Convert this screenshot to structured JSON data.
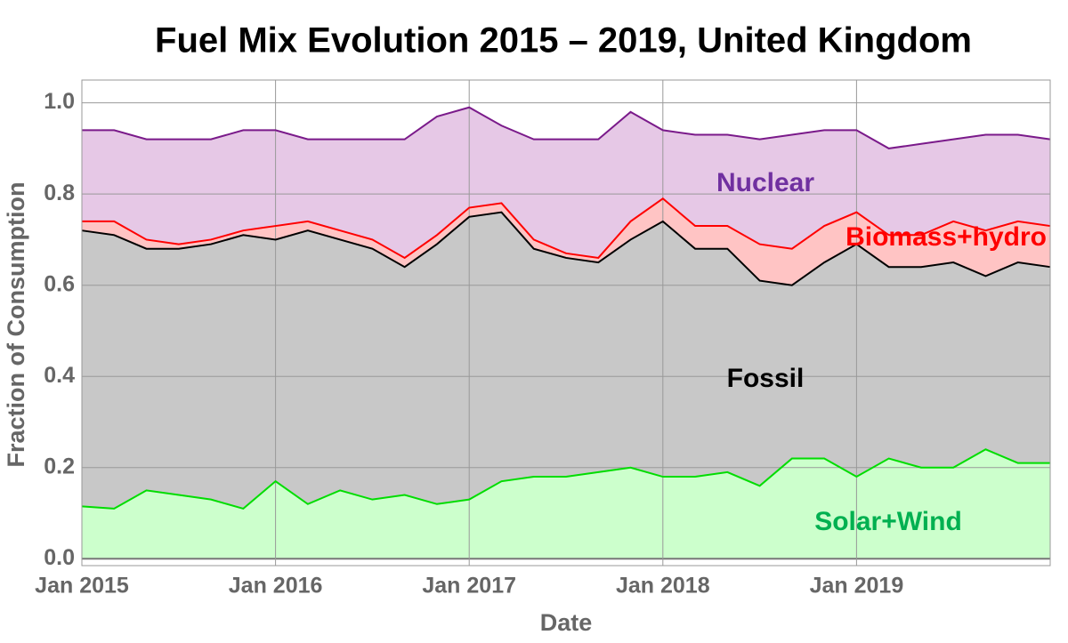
{
  "chart_data": {
    "type": "stacked-area",
    "title": "Fuel Mix Evolution 2015 – 2019, United Kingdom",
    "x_label": "Date",
    "y_label": "Fraction of Consumption",
    "x": [
      "2015-01",
      "2015-03",
      "2015-05",
      "2015-07",
      "2015-09",
      "2015-11",
      "2016-01",
      "2016-03",
      "2016-05",
      "2016-07",
      "2016-09",
      "2016-11",
      "2017-01",
      "2017-03",
      "2017-05",
      "2017-07",
      "2017-09",
      "2017-11",
      "2018-01",
      "2018-03",
      "2018-05",
      "2018-07",
      "2018-09",
      "2018-11",
      "2019-01",
      "2019-03",
      "2019-05",
      "2019-07",
      "2019-09",
      "2019-11",
      "2020-01"
    ],
    "xlim": [
      "2015-01",
      "2020-01"
    ],
    "xticks": [
      {
        "value": "2015-01",
        "label": "Jan 2015"
      },
      {
        "value": "2016-01",
        "label": "Jan 2016"
      },
      {
        "value": "2017-01",
        "label": "Jan 2017"
      },
      {
        "value": "2018-01",
        "label": "Jan 2018"
      },
      {
        "value": "2019-01",
        "label": "Jan 2019"
      }
    ],
    "ylim": [
      -0.015,
      1.05
    ],
    "yticks": [
      {
        "value": 0,
        "label": "0.0"
      },
      0.2,
      0.4,
      0.6,
      0.8,
      {
        "value": 1,
        "label": "1.0"
      }
    ],
    "grid": true,
    "series": [
      {
        "name": "Solar+Wind",
        "color": "#00dd00",
        "fill": "#ccffcc",
        "label_color": "#00b050",
        "values": [
          0.115,
          0.11,
          0.15,
          0.14,
          0.13,
          0.11,
          0.17,
          0.12,
          0.15,
          0.13,
          0.14,
          0.12,
          0.13,
          0.17,
          0.18,
          0.18,
          0.19,
          0.2,
          0.18,
          0.18,
          0.19,
          0.16,
          0.22,
          0.22,
          0.18,
          0.22,
          0.2,
          0.2,
          0.24,
          0.21,
          0.21
        ]
      },
      {
        "name": "Fossil",
        "color": "#000000",
        "fill": "#c8c8c8",
        "label_color": "#000000",
        "values": [
          0.605,
          0.6,
          0.53,
          0.54,
          0.56,
          0.6,
          0.53,
          0.6,
          0.55,
          0.55,
          0.5,
          0.57,
          0.62,
          0.59,
          0.5,
          0.48,
          0.46,
          0.5,
          0.56,
          0.5,
          0.49,
          0.45,
          0.38,
          0.43,
          0.51,
          0.42,
          0.44,
          0.45,
          0.38,
          0.44,
          0.43
        ]
      },
      {
        "name": "Biomass+hydro",
        "color": "#ff0000",
        "fill": "#ffc4c4",
        "label_color": "#ff0000",
        "values": [
          0.02,
          0.03,
          0.02,
          0.01,
          0.01,
          0.01,
          0.03,
          0.02,
          0.02,
          0.02,
          0.02,
          0.02,
          0.02,
          0.02,
          0.02,
          0.01,
          0.01,
          0.04,
          0.05,
          0.05,
          0.05,
          0.08,
          0.08,
          0.08,
          0.07,
          0.07,
          0.07,
          0.09,
          0.1,
          0.09,
          0.09
        ]
      },
      {
        "name": "Nuclear",
        "color": "#7a1a8a",
        "fill": "#e6c8e6",
        "label_color": "#7030a0",
        "values": [
          0.2,
          0.2,
          0.22,
          0.23,
          0.22,
          0.22,
          0.21,
          0.18,
          0.2,
          0.22,
          0.26,
          0.26,
          0.22,
          0.17,
          0.22,
          0.25,
          0.26,
          0.24,
          0.15,
          0.2,
          0.2,
          0.23,
          0.25,
          0.21,
          0.18,
          0.19,
          0.2,
          0.18,
          0.21,
          0.19,
          0.19
        ]
      }
    ]
  }
}
